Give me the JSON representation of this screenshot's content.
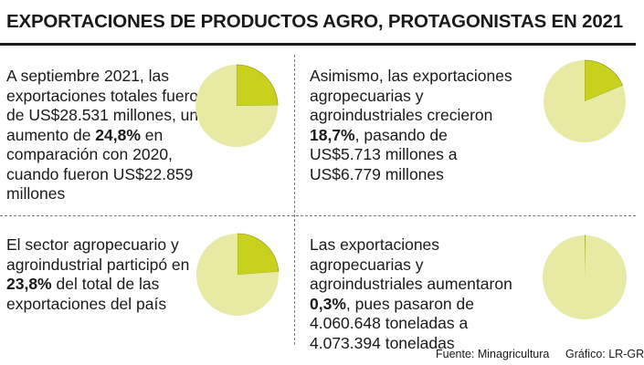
{
  "header": {
    "title": "EXPORTACIONES DE PRODUCTOS AGRO, PROTAGONISTAS EN 2021"
  },
  "panels": [
    {
      "text_before": "A septiembre 2021, las exportaciones totales fueron de US$28.531 millones, un aumento de ",
      "highlight": "24,8%",
      "text_after": " en comparación con 2020, cuando fueron US$22.859 millones"
    },
    {
      "text_before": "Asimismo, las exportaciones agropecuarias y agroindustriales crecieron ",
      "highlight": "18,7%",
      "text_after": ", pasando de US$5.713 millones a US$6.779 millones"
    },
    {
      "text_before": "El sector agropecuario y agroindustrial participó en ",
      "highlight": "23,8%",
      "text_after": " del total de las exportaciones del país"
    },
    {
      "text_before": "Las exportaciones agropecuarias y agroindustriales aumentaron ",
      "highlight": "0,3%",
      "text_after": ", pues pasaron de 4.060.648 toneladas a 4.073.394 toneladas"
    }
  ],
  "footer": {
    "source": "Fuente: Minagricultura",
    "credit": "Gráfico: LR-GR"
  },
  "colors": {
    "highlight_slice": "#c8d21e",
    "remainder_slice": "#e8eaa4",
    "slice_stroke": "#9aa020"
  },
  "chart_data": [
    {
      "type": "pie",
      "values": [
        24.8,
        75.2
      ]
    },
    {
      "type": "pie",
      "values": [
        18.7,
        81.3
      ]
    },
    {
      "type": "pie",
      "values": [
        23.8,
        76.2
      ]
    },
    {
      "type": "pie",
      "values": [
        0.3,
        99.7
      ]
    }
  ]
}
